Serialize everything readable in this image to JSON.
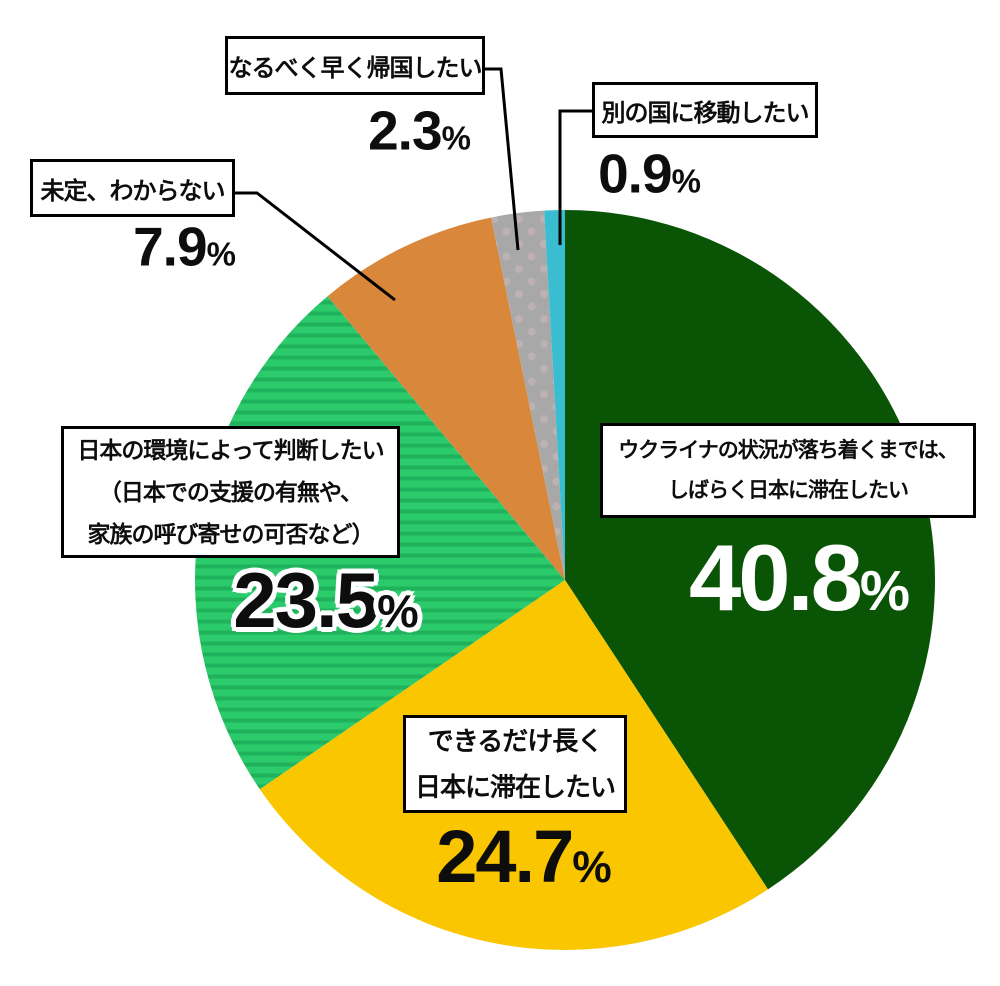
{
  "chart_data": {
    "type": "pie",
    "title": "",
    "unit": "%",
    "start_angle": "12-oclock",
    "direction": "clockwise",
    "legend_position": "callout-boxes-with-leader-lines",
    "slices": [
      {
        "id": "stay-until-settled",
        "label": "ウクライナの状況が落ち着くまでは、しばらく日本に滞在したい",
        "label_lines": [
          "ウクライナの状況が落ち着くまでは、",
          "しばらく日本に滞在したい"
        ],
        "value": 40.8,
        "color": "#0A5505",
        "pattern": "solid",
        "value_color": "#FFFFFF"
      },
      {
        "id": "stay-as-long-as-possible",
        "label": "できるだけ長く日本に滞在したい",
        "label_lines": [
          "できるだけ長く",
          "日本に滞在したい"
        ],
        "value": 24.7,
        "color": "#FAC600",
        "pattern": "solid",
        "value_color": "#0d0d0d"
      },
      {
        "id": "judge-by-japan-environment",
        "label": "日本の環境によって判断したい（日本での支援の有無や、家族の呼び寄せの可否など）",
        "label_lines": [
          "日本の環境によって判断したい",
          "（日本での支援の有無や、",
          "家族の呼び寄せの可否など）"
        ],
        "value": 23.5,
        "color": "#2BCB6C",
        "pattern": "h-stripes",
        "pattern_color": "#1FB25B",
        "value_color": "#0d0d0d"
      },
      {
        "id": "undecided",
        "label": "未定、わからない",
        "label_lines": [
          "未定、わからない"
        ],
        "value": 7.9,
        "color": "#D8873B",
        "pattern": "solid",
        "value_color": "#0d0d0d"
      },
      {
        "id": "return-home-soon",
        "label": "なるべく早く帰国したい",
        "label_lines": [
          "なるべく早く帰国したい"
        ],
        "value": 2.3,
        "color": "#A8A8A8",
        "pattern": "dots",
        "pattern_color": "#BDB1B1",
        "value_color": "#0d0d0d"
      },
      {
        "id": "move-to-another-country",
        "label": "別の国に移動したい",
        "label_lines": [
          "別の国に移動したい"
        ],
        "value": 0.9,
        "color": "#3BBDD1",
        "pattern": "solid",
        "value_color": "#0d0d0d"
      }
    ]
  }
}
